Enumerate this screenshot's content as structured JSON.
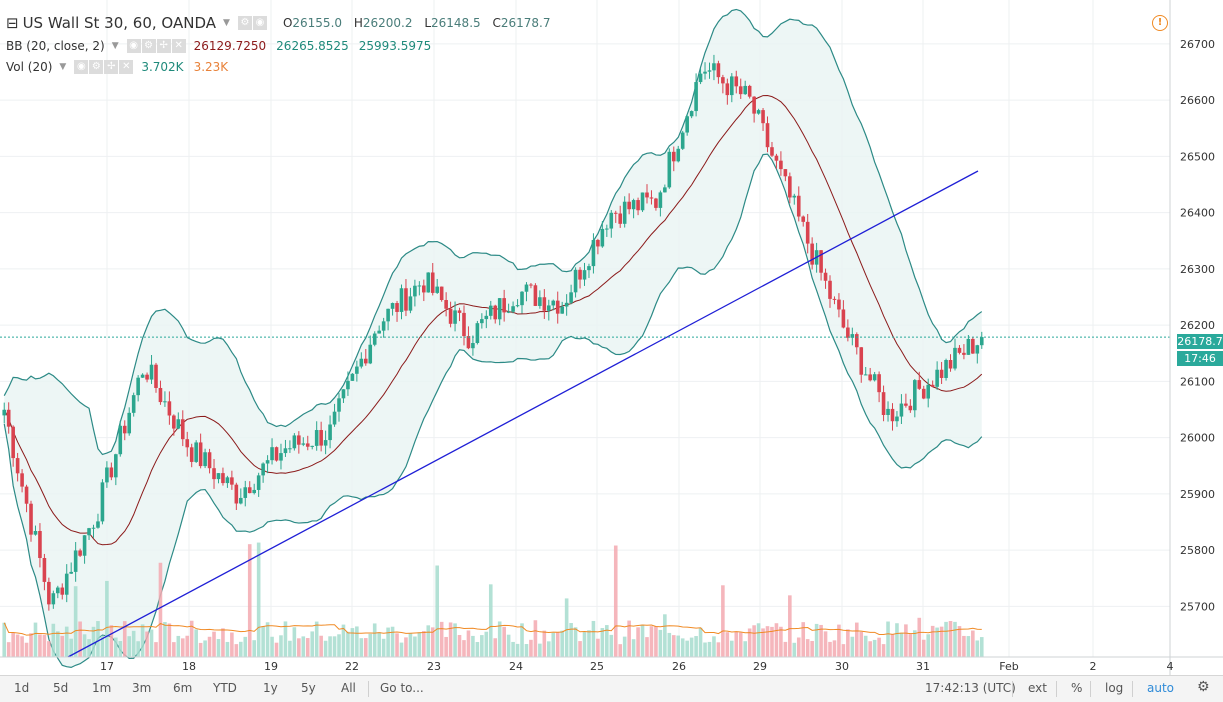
{
  "header": {
    "symbol": "US Wall St 30, 60, OANDA",
    "ohlc": [
      {
        "label": "O",
        "value": "26155.0"
      },
      {
        "label": "H",
        "value": "26200.2"
      },
      {
        "label": "L",
        "value": "26148.5"
      },
      {
        "label": "C",
        "value": "26178.7"
      }
    ],
    "bb_label": "BB (20, close, 2)",
    "bb_values": [
      "26129.7250",
      "26265.8525",
      "25993.5975"
    ],
    "vol_label": "Vol (20)",
    "vol_values": [
      "3.702K",
      "3.23K"
    ]
  },
  "price_tag": "26178.7",
  "time_tag": "17:46",
  "toolbar": {
    "ranges": [
      "1d",
      "5d",
      "1m",
      "3m",
      "6m",
      "YTD",
      "1y",
      "5y",
      "All"
    ],
    "goto": "Go to...",
    "clock": "17:42:13 (UTC)",
    "ext": "ext",
    "pct": "%",
    "log": "log",
    "auto": "auto"
  },
  "colors": {
    "up": "#2ca68e",
    "down": "#d9434f",
    "band": "#2c8a86",
    "basis": "#8b1a1a",
    "trendline": "#1f1fd6",
    "volume_ma": "#f08a24"
  },
  "chart_data": {
    "type": "candlestick",
    "ylim": [
      25610,
      26730
    ],
    "y_ticks": [
      25700,
      25800,
      25900,
      26000,
      26100,
      26200,
      26300,
      26400,
      26500,
      26600,
      26700
    ],
    "x_labels": [
      "17",
      "18",
      "19",
      "22",
      "23",
      "24",
      "25",
      "26",
      "29",
      "30",
      "31",
      "Feb",
      "2",
      "4"
    ],
    "candles_close_path": [
      [
        "Jan 16",
        26050
      ],
      [
        "Jan 17",
        25700
      ],
      [
        "Jan 17",
        25870
      ],
      [
        "Jan 18",
        26130
      ],
      [
        "Jan 19",
        25980
      ],
      [
        "Jan 19",
        25900
      ],
      [
        "Jan 22",
        25980
      ],
      [
        "Jan 22",
        26010
      ],
      [
        "Jan 23",
        26200
      ],
      [
        "Jan 23",
        26280
      ],
      [
        "Jan 24",
        26180
      ],
      [
        "Jan 24",
        26260
      ],
      [
        "Jan 25",
        26240
      ],
      [
        "Jan 26",
        26400
      ],
      [
        "Jan 26",
        26420
      ],
      [
        "Jan 29",
        26660
      ],
      [
        "Jan 29",
        26600
      ],
      [
        "Jan 30",
        26400
      ],
      [
        "Jan 30",
        26200
      ],
      [
        "Jan 31",
        26040
      ],
      [
        "Jan 31",
        26110
      ],
      [
        "Jan 31",
        26178.7
      ]
    ],
    "bollinger": {
      "basis_last": 26129.725,
      "upper_last": 26265.8525,
      "lower_last": 25993.5975
    },
    "trendline": {
      "from": [
        "Jan 16",
        25610
      ],
      "to": [
        "Jan 31",
        26490
      ]
    },
    "volume": {
      "last": 3.702,
      "ma_last": 3.23,
      "unit": "K"
    }
  }
}
